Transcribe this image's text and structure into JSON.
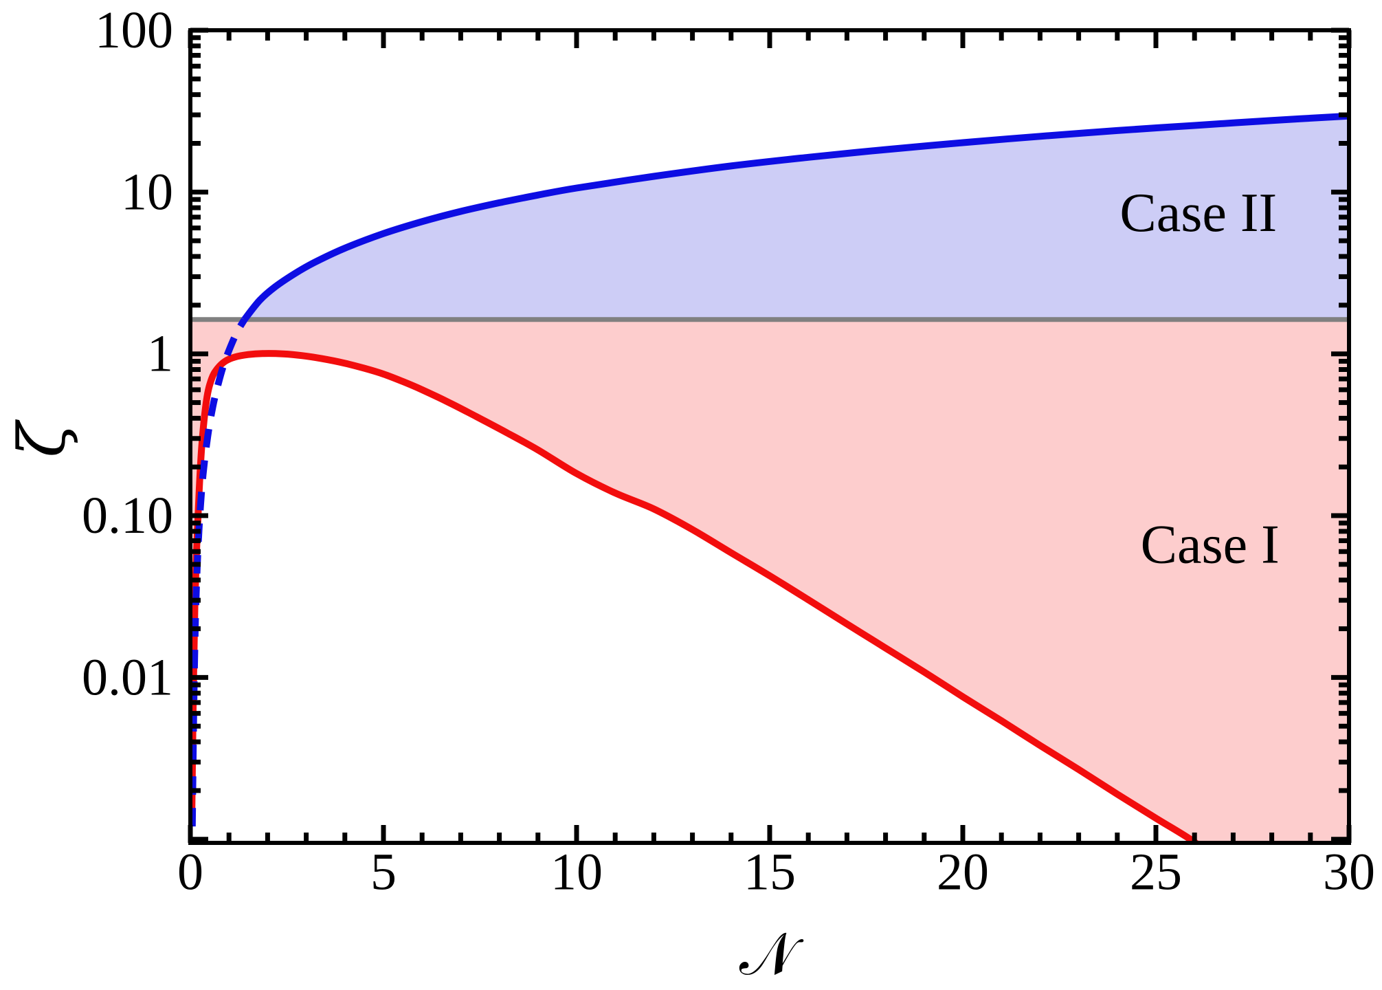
{
  "figure": {
    "background": "#FFFFFF",
    "frame_color": "#000000"
  },
  "chart_data": {
    "type": "line",
    "title": "",
    "xlabel": "𝒩",
    "ylabel": "ζ",
    "grid": false,
    "legend": "none",
    "x_axis": {
      "min": 0,
      "max": 30,
      "major_tick_step": 5,
      "minor_tick_step": 1,
      "major_ticks": [
        0,
        5,
        10,
        15,
        20,
        25,
        30
      ],
      "tick_labels": [
        "0",
        "5",
        "10",
        "15",
        "20",
        "25",
        "30"
      ]
    },
    "y_axis": {
      "scale": "log",
      "min": 0.00095,
      "max": 100,
      "labeled_ticks": [
        {
          "label": "100",
          "value": 100
        },
        {
          "label": "10",
          "value": 10
        },
        {
          "label": "1",
          "value": 1
        },
        {
          "label": "0.10",
          "value": 0.1
        },
        {
          "label": "0.01",
          "value": 0.01
        }
      ],
      "minor_ticks": "log multiples 2-9 per decade"
    },
    "hline": {
      "value": 1.63,
      "color": "#808080",
      "width": 7
    },
    "series": [
      {
        "name": "case-ii-upper-boundary",
        "color": "#0D0DE3",
        "width": 10,
        "solid_from_x": 1.4,
        "dash_pattern": [
          27,
          19
        ],
        "fill_color": "#CDCDF6",
        "fill": "between curve and hline (above hline)",
        "points": [
          [
            0.05,
            0.0012
          ],
          [
            0.09,
            0.007
          ],
          [
            0.13,
            0.022
          ],
          [
            0.18,
            0.05
          ],
          [
            0.25,
            0.105
          ],
          [
            0.33,
            0.18
          ],
          [
            0.45,
            0.31
          ],
          [
            0.58,
            0.47
          ],
          [
            0.72,
            0.65
          ],
          [
            0.86,
            0.85
          ],
          [
            1.0,
            1.05
          ],
          [
            1.2,
            1.35
          ],
          [
            1.4,
            1.63
          ],
          [
            1.8,
            2.15
          ],
          [
            2.2,
            2.6
          ],
          [
            2.7,
            3.13
          ],
          [
            3.2,
            3.66
          ],
          [
            4,
            4.5
          ],
          [
            5,
            5.54
          ],
          [
            6,
            6.57
          ],
          [
            7,
            7.59
          ],
          [
            8,
            8.59
          ],
          [
            9,
            9.58
          ],
          [
            10,
            10.59
          ],
          [
            12,
            12.5
          ],
          [
            14,
            14.5
          ],
          [
            16,
            16.4
          ],
          [
            18,
            18.3
          ],
          [
            20,
            20.2
          ],
          [
            22,
            22.1
          ],
          [
            24,
            24.0
          ],
          [
            26,
            25.8
          ],
          [
            28,
            27.7
          ],
          [
            30,
            29.5
          ]
        ]
      },
      {
        "name": "case-i-lower-boundary",
        "color": "#F20D0D",
        "width": 10,
        "solid_from_x": 0,
        "dash_pattern": [],
        "fill_color": "#FDCDCD",
        "fill": "between hline and curve (below hline)",
        "points": [
          [
            0.04,
            0.0015
          ],
          [
            0.08,
            0.009
          ],
          [
            0.12,
            0.03
          ],
          [
            0.17,
            0.07
          ],
          [
            0.23,
            0.145
          ],
          [
            0.3,
            0.28
          ],
          [
            0.42,
            0.52
          ],
          [
            0.55,
            0.7
          ],
          [
            0.7,
            0.81
          ],
          [
            0.9,
            0.9
          ],
          [
            1.15,
            0.955
          ],
          [
            1.5,
            0.99
          ],
          [
            1.9,
            1.005
          ],
          [
            2.4,
            1.0
          ],
          [
            2.9,
            0.975
          ],
          [
            3.4,
            0.935
          ],
          [
            4,
            0.875
          ],
          [
            4.5,
            0.815
          ],
          [
            5,
            0.75
          ],
          [
            5.5,
            0.675
          ],
          [
            6,
            0.6
          ],
          [
            6.7,
            0.5
          ],
          [
            7.4,
            0.41
          ],
          [
            8.2,
            0.325
          ],
          [
            9,
            0.255
          ],
          [
            10,
            0.182
          ],
          [
            11,
            0.138
          ],
          [
            12,
            0.11
          ],
          [
            13,
            0.082
          ],
          [
            14,
            0.059
          ],
          [
            15,
            0.0425
          ],
          [
            16,
            0.0302
          ],
          [
            17,
            0.0214
          ],
          [
            18,
            0.0152
          ],
          [
            19,
            0.0108
          ],
          [
            20,
            0.0076
          ],
          [
            21,
            0.0054
          ],
          [
            22,
            0.0038
          ],
          [
            23,
            0.0027
          ],
          [
            24,
            0.0019
          ],
          [
            25,
            0.00135
          ],
          [
            26,
            0.00096
          ],
          [
            26.6,
            0.00072
          ]
        ]
      }
    ],
    "annotations": [
      {
        "text": "Case II",
        "x": 26.1,
        "y": 7.4
      },
      {
        "text": "Case I",
        "x": 26.4,
        "y": 0.066
      }
    ]
  }
}
